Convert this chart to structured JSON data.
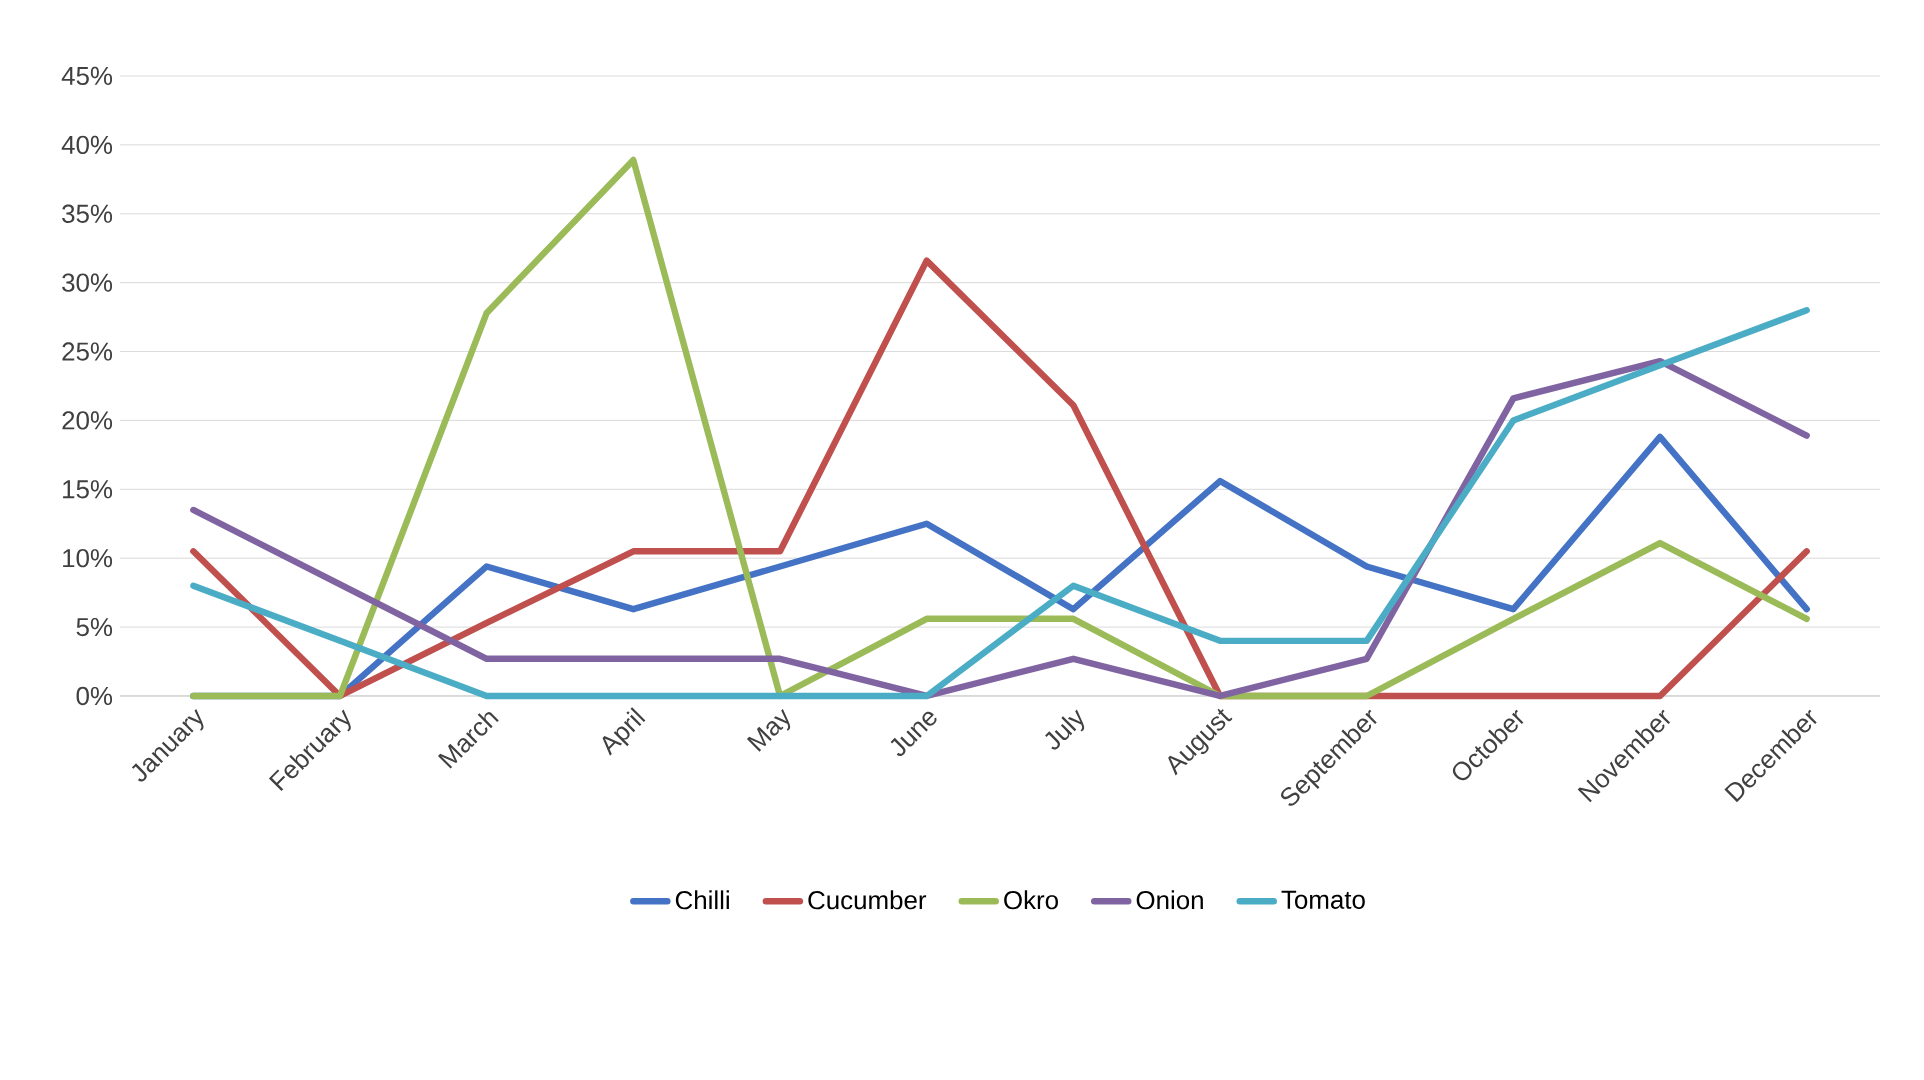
{
  "chart_data": {
    "type": "line",
    "categories": [
      "January",
      "February",
      "March",
      "April",
      "May",
      "June",
      "July",
      "August",
      "September",
      "October",
      "November",
      "December"
    ],
    "series": [
      {
        "name": "Chilli",
        "color": "#4472c4",
        "values": [
          0,
          0,
          9.4,
          6.3,
          9.4,
          12.5,
          6.3,
          15.6,
          9.4,
          6.3,
          18.8,
          6.3
        ]
      },
      {
        "name": "Cucumber",
        "color": "#c0504d",
        "values": [
          10.5,
          0,
          5.3,
          10.5,
          10.5,
          31.6,
          21.1,
          0,
          0,
          0,
          0,
          10.5
        ]
      },
      {
        "name": "Okro",
        "color": "#9bbb59",
        "values": [
          0,
          0,
          27.8,
          38.9,
          0,
          5.6,
          5.6,
          0,
          0,
          5.6,
          11.1,
          5.6
        ]
      },
      {
        "name": "Onion",
        "color": "#8064a2",
        "values": [
          13.5,
          8.1,
          2.7,
          2.7,
          2.7,
          0,
          2.7,
          0,
          2.7,
          21.6,
          24.3,
          18.9
        ]
      },
      {
        "name": "Tomato",
        "color": "#4bacc6",
        "values": [
          8,
          4,
          0,
          0,
          0,
          0,
          8,
          4,
          4,
          20,
          24,
          28
        ]
      }
    ],
    "ylim": [
      0,
      45
    ],
    "yticks": [
      {
        "value": 0,
        "label": "0%"
      },
      {
        "value": 5,
        "label": "5%"
      },
      {
        "value": 10,
        "label": "10%"
      },
      {
        "value": 15,
        "label": "15%"
      },
      {
        "value": 20,
        "label": "20%"
      },
      {
        "value": 25,
        "label": "25%"
      },
      {
        "value": 30,
        "label": "30%"
      },
      {
        "value": 35,
        "label": "35%"
      },
      {
        "value": 40,
        "label": "40%"
      },
      {
        "value": 45,
        "label": "45%"
      }
    ],
    "grid": "y",
    "legend": "bottom",
    "marker": "none",
    "line_style": "solid"
  }
}
